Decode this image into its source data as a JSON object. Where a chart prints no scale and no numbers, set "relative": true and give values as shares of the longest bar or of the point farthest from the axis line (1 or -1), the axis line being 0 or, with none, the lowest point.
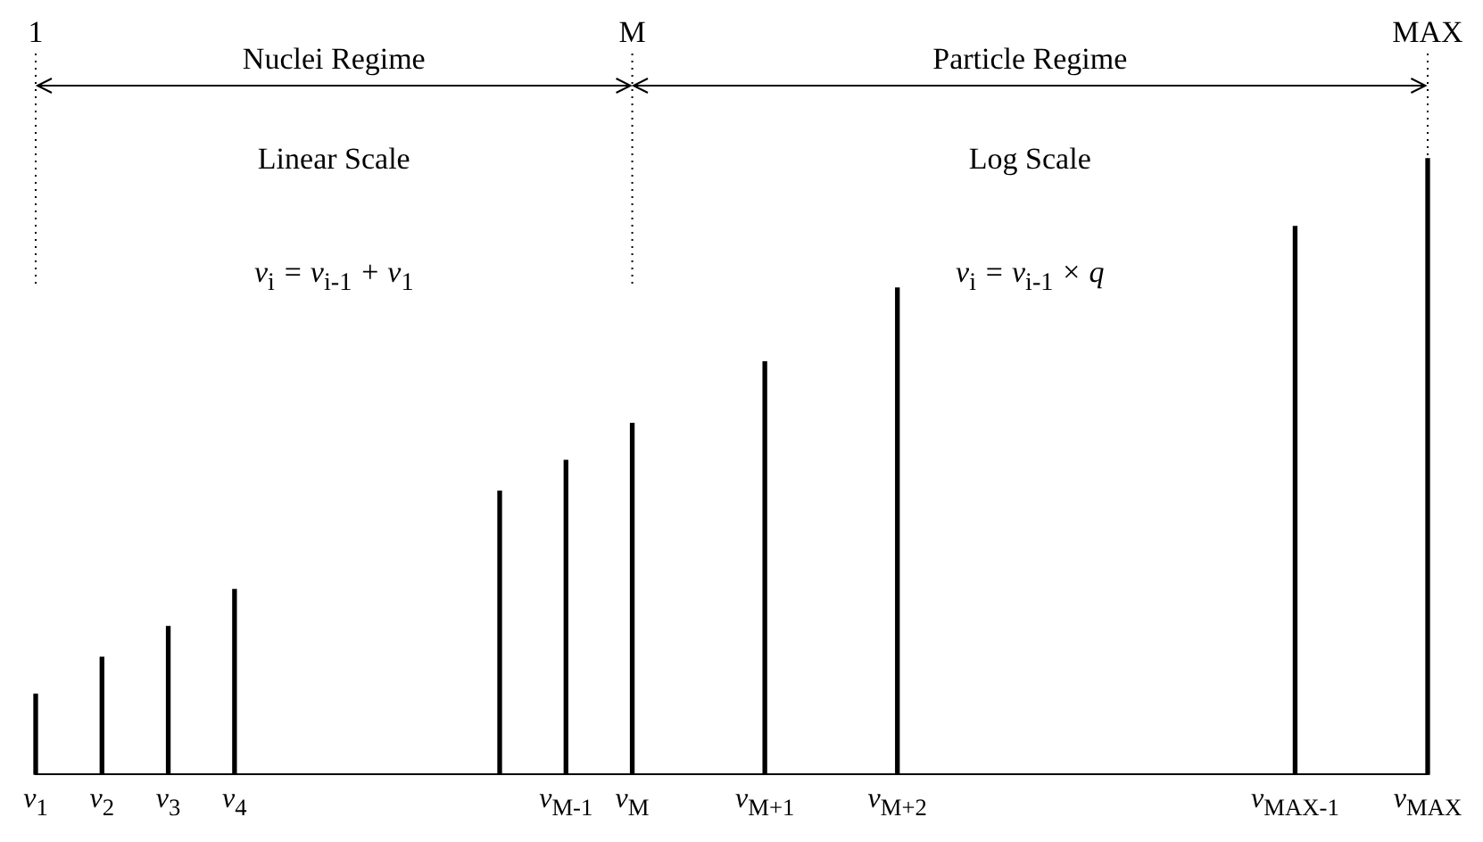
{
  "chart_data": {
    "type": "bar",
    "relative": true,
    "categories": [
      "v$_{1}$",
      "v$_{2}$",
      "v$_{3}$",
      "v$_{4}$",
      null,
      null,
      null,
      null,
      "v$_{M-1}$",
      "v$_{M}$",
      null,
      "v$_{M+1}$",
      null,
      "v$_{M+2}$",
      null,
      null,
      null,
      null,
      null,
      "v$_{MAX-1}$",
      null,
      "v$_{MAX}$"
    ],
    "values": [
      0.13,
      0.19,
      0.24,
      0.3,
      null,
      null,
      null,
      0.46,
      0.51,
      0.57,
      null,
      0.67,
      null,
      0.79,
      null,
      null,
      null,
      null,
      null,
      0.89,
      null,
      1
    ],
    "color": "#000000",
    "ref_lines": [
      {
        "axis": "x",
        "value": "v$_{1}$",
        "label": "1",
        "line_style": "dotted",
        "color": "#000000"
      },
      {
        "axis": "x",
        "value": "v$_{M}$",
        "label": "M",
        "line_style": "dotted",
        "color": "#000000"
      },
      {
        "axis": "x",
        "value": "v$_{MAX}$",
        "label": "MAX",
        "line_style": "dotted",
        "color": "#000000"
      }
    ],
    "annotations": [
      "Nuclei Regime",
      "Particle Regime",
      "Linear Scale",
      "Log Scale",
      "v$_{i}$ = v$_{i-1}$ + v$_{1}$",
      "v$_{i}$ = v$_{i-1}$ × q"
    ]
  }
}
